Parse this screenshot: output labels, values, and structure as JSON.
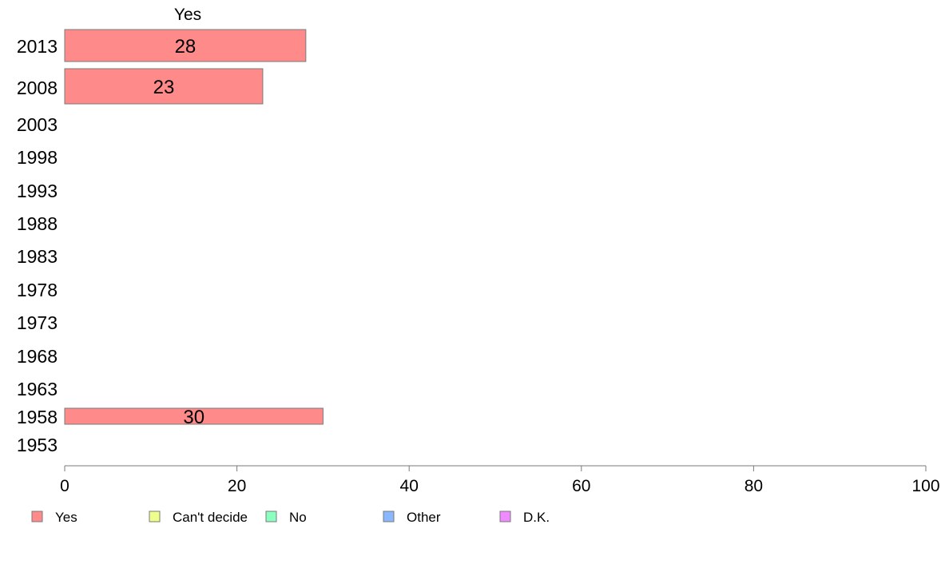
{
  "chart_data": {
    "type": "bar",
    "orientation": "horizontal",
    "stacked": true,
    "top_label": "Yes",
    "categories": [
      "2013",
      "2008",
      "2003",
      "1998",
      "1993",
      "1988",
      "1983",
      "1978",
      "1973",
      "1968",
      "1963",
      "1958",
      "1953"
    ],
    "series": [
      {
        "name": "Yes",
        "color": "#ff8a8a",
        "values": [
          28,
          23,
          null,
          null,
          null,
          null,
          null,
          null,
          null,
          null,
          null,
          30,
          null
        ],
        "labels": [
          "28",
          "23",
          "",
          "",
          "",
          "",
          "",
          "",
          "",
          "",
          "",
          "30",
          ""
        ]
      },
      {
        "name": "Can't decide",
        "color": "#eeff8c",
        "values": [
          null,
          null,
          null,
          null,
          null,
          null,
          null,
          null,
          null,
          null,
          null,
          null,
          null
        ]
      },
      {
        "name": "No",
        "color": "#8affc0",
        "values": [
          null,
          null,
          null,
          null,
          null,
          null,
          null,
          null,
          null,
          null,
          null,
          null,
          null
        ]
      },
      {
        "name": "Other",
        "color": "#8ab8ff",
        "values": [
          null,
          null,
          null,
          null,
          null,
          null,
          null,
          null,
          null,
          null,
          null,
          null,
          null
        ]
      },
      {
        "name": "D.K.",
        "color": "#f08aff",
        "values": [
          null,
          null,
          null,
          null,
          null,
          null,
          null,
          null,
          null,
          null,
          null,
          null,
          null
        ]
      }
    ],
    "xlim": [
      0,
      100
    ],
    "xticks": [
      "0",
      "20",
      "40",
      "60",
      "80",
      "100"
    ],
    "grid": false,
    "legend_position": "bottom"
  }
}
